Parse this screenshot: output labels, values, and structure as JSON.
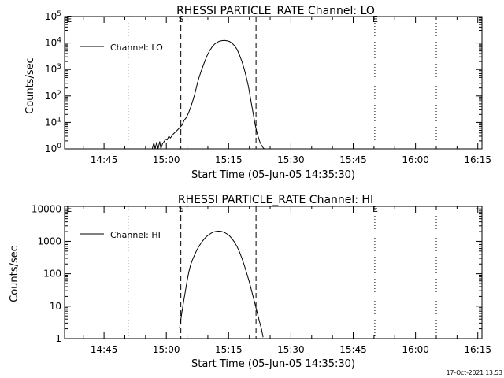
{
  "footer": {
    "date_stamp": "17-Oct-2021 13:53"
  },
  "chart_data": [
    {
      "type": "line",
      "title": "RHESSI PARTICLE_RATE Channel: LO",
      "xlabel": "Start Time (05-Jun-05 14:35:30)",
      "ylabel": "Counts/sec",
      "yscale": "log",
      "ylim": [
        1,
        100000
      ],
      "ytick_labels": [
        {
          "value": 1,
          "base": "10",
          "exp": "0"
        },
        {
          "value": 10,
          "base": "10",
          "exp": "1"
        },
        {
          "value": 100,
          "base": "10",
          "exp": "2"
        },
        {
          "value": 1000,
          "base": "10",
          "exp": "3"
        },
        {
          "value": 10000,
          "base": "10",
          "exp": "4"
        },
        {
          "value": 100000,
          "base": "10",
          "exp": "5"
        }
      ],
      "xlim_minutes": [
        35.5,
        136.0
      ],
      "xticks": [
        {
          "label": "14:45",
          "minutes": 45
        },
        {
          "label": "15:00",
          "minutes": 60
        },
        {
          "label": "15:15",
          "minutes": 75
        },
        {
          "label": "15:30",
          "minutes": 90
        },
        {
          "label": "15:45",
          "minutes": 105
        },
        {
          "label": "16:00",
          "minutes": 120
        },
        {
          "label": "16:15",
          "minutes": 135
        }
      ],
      "legend": {
        "label": "Channel: LO",
        "position": "top-left"
      },
      "vlines": [
        {
          "minutes": 50.8,
          "style": "dotted",
          "label": ""
        },
        {
          "minutes": 63.5,
          "style": "dashed",
          "label": "S"
        },
        {
          "minutes": 81.6,
          "style": "dashed",
          "label": ""
        },
        {
          "minutes": 110.2,
          "style": "dotted",
          "label": "E"
        },
        {
          "minutes": 125.0,
          "style": "dotted",
          "label": ""
        },
        {
          "minutes": 36.5,
          "style": "none",
          "label": "E"
        }
      ],
      "series": [
        {
          "name": "Channel: LO",
          "x": [
            56.6,
            57.0,
            57.3,
            57.7,
            58.0,
            58.4,
            58.7,
            59.1,
            59.4,
            59.8,
            60.2,
            60.6,
            61.0,
            61.4,
            61.8,
            62.3,
            62.8,
            63.3,
            63.8,
            64.3,
            64.8,
            65.3,
            65.8,
            66.3,
            66.8,
            67.3,
            67.8,
            68.3,
            68.8,
            69.3,
            69.8,
            70.4,
            71.0,
            71.6,
            72.2,
            72.8,
            73.4,
            74.0,
            74.6,
            75.2,
            75.8,
            76.4,
            77.0,
            77.6,
            78.2,
            78.8,
            79.3,
            79.8,
            80.2,
            80.6,
            81.0,
            81.4,
            81.8,
            82.2,
            82.6,
            83.0,
            83.3,
            83.6
          ],
          "y": [
            1.0,
            1.7,
            1.0,
            1.8,
            1.0,
            1.9,
            1.0,
            1.6,
            1.8,
            2.3,
            2.2,
            3.0,
            2.6,
            3.2,
            3.8,
            4.5,
            5.4,
            6.5,
            8.0,
            12,
            15,
            22,
            35,
            60,
            110,
            230,
            450,
            800,
            1300,
            2100,
            3300,
            5000,
            7000,
            9000,
            10500,
            11800,
            12300,
            12500,
            12200,
            11500,
            10000,
            8000,
            5800,
            3600,
            2000,
            1000,
            480,
            220,
            95,
            42,
            18,
            8,
            4.3,
            2.6,
            1.7,
            1.3,
            1.1,
            1.0
          ]
        }
      ]
    },
    {
      "type": "line",
      "title": "RHESSI PARTICLE_RATE Channel: HI",
      "xlabel": "Start Time (05-Jun-05 14:35:30)",
      "ylabel": "Counts/sec",
      "yscale": "log",
      "ylim": [
        1,
        12000
      ],
      "ytick_labels": [
        {
          "value": 1,
          "label": "1"
        },
        {
          "value": 10,
          "label": "10"
        },
        {
          "value": 100,
          "label": "100"
        },
        {
          "value": 1000,
          "label": "1000"
        },
        {
          "value": 10000,
          "label": "10000"
        }
      ],
      "xlim_minutes": [
        35.5,
        136.0
      ],
      "xticks": [
        {
          "label": "14:45",
          "minutes": 45
        },
        {
          "label": "15:00",
          "minutes": 60
        },
        {
          "label": "15:15",
          "minutes": 75
        },
        {
          "label": "15:30",
          "minutes": 90
        },
        {
          "label": "15:45",
          "minutes": 105
        },
        {
          "label": "16:00",
          "minutes": 120
        },
        {
          "label": "16:15",
          "minutes": 135
        }
      ],
      "legend": {
        "label": "Channel: HI",
        "position": "top-left"
      },
      "vlines": [
        {
          "minutes": 50.8,
          "style": "dotted",
          "label": ""
        },
        {
          "minutes": 63.5,
          "style": "dashed",
          "label": "S"
        },
        {
          "minutes": 81.6,
          "style": "dashed",
          "label": ""
        },
        {
          "minutes": 110.2,
          "style": "dotted",
          "label": "E"
        },
        {
          "minutes": 125.0,
          "style": "dotted",
          "label": ""
        },
        {
          "minutes": 36.5,
          "style": "none",
          "label": "E"
        }
      ],
      "series": [
        {
          "name": "Channel: HI",
          "x": [
            63.2,
            63.5,
            63.8,
            64.2,
            64.6,
            65.0,
            65.4,
            65.8,
            66.3,
            66.8,
            67.3,
            67.8,
            68.3,
            68.8,
            69.3,
            69.8,
            70.4,
            71.0,
            71.6,
            72.2,
            72.8,
            73.4,
            74.0,
            74.6,
            75.2,
            75.8,
            76.4,
            77.0,
            77.6,
            78.2,
            78.8,
            79.4,
            80.0,
            80.6,
            81.2,
            81.8,
            82.4,
            82.9,
            83.3
          ],
          "y": [
            2.2,
            4.0,
            7.0,
            15,
            30,
            60,
            110,
            180,
            270,
            380,
            520,
            680,
            860,
            1050,
            1250,
            1450,
            1650,
            1850,
            1980,
            2050,
            2060,
            2000,
            1880,
            1700,
            1480,
            1220,
            950,
            700,
            480,
            300,
            180,
            100,
            55,
            28,
            14,
            7,
            3.5,
            2.0,
            1.1
          ]
        }
      ]
    }
  ]
}
